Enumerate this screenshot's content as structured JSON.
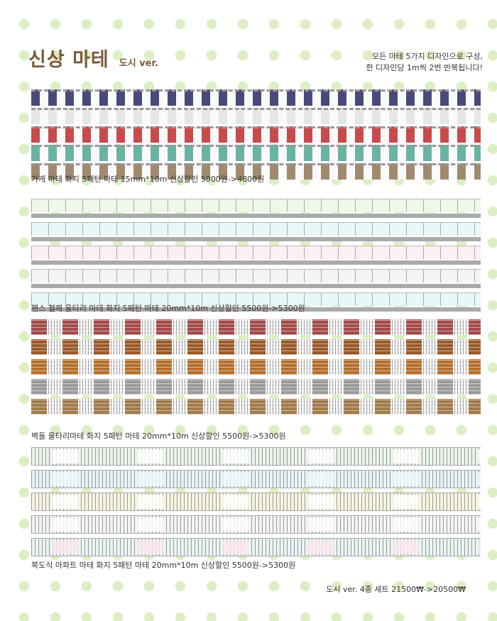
{
  "header": {
    "title": "신상 마테",
    "subtitle": "도시 ver.",
    "note_line1": "모든 마테 5가지 디자인으로 구성,",
    "note_line2": "한 디자인당 1m씩 2번 반복됩니다!"
  },
  "products": [
    {
      "caption": "가게 마테 화지 5패턴 마테 15mm*10m 신상할인 5000원->4800원"
    },
    {
      "caption": "펜스 철제 울타리 마테 화지 5패턴 마테 20mm*10m 신상할인 5500원->5300원"
    },
    {
      "caption": "벽돌 울타리마테 화지 5패턴 마테 20mm*10m 신상할인 5500원->5300원"
    },
    {
      "caption": "복도식 아파트 마테 화지 5패턴 마테 20mm*10m 신상할인 5500원->5300원"
    }
  ],
  "footer": {
    "set_price": "도시 ver. 4종 세트 21500₩->20500₩"
  },
  "colors": {
    "store": [
      "#4a4a7a",
      "#ffffff",
      "#c94a4a",
      "#6ab3a4",
      "#a08a6e"
    ],
    "fence": [
      "#eef7e8",
      "#e8f6f8",
      "#fbeef4",
      "#f4f4f4",
      "#e8f6f8"
    ],
    "brick": [
      "#a24b4b",
      "#9a5a2a",
      "#b5702e",
      "#9a9a9a",
      "#a07a4a"
    ],
    "apt": [
      "#eaf4ea",
      "#e6f3f6",
      "#f7f5e0",
      "#f4f4f4",
      "#eaf4f4"
    ]
  }
}
